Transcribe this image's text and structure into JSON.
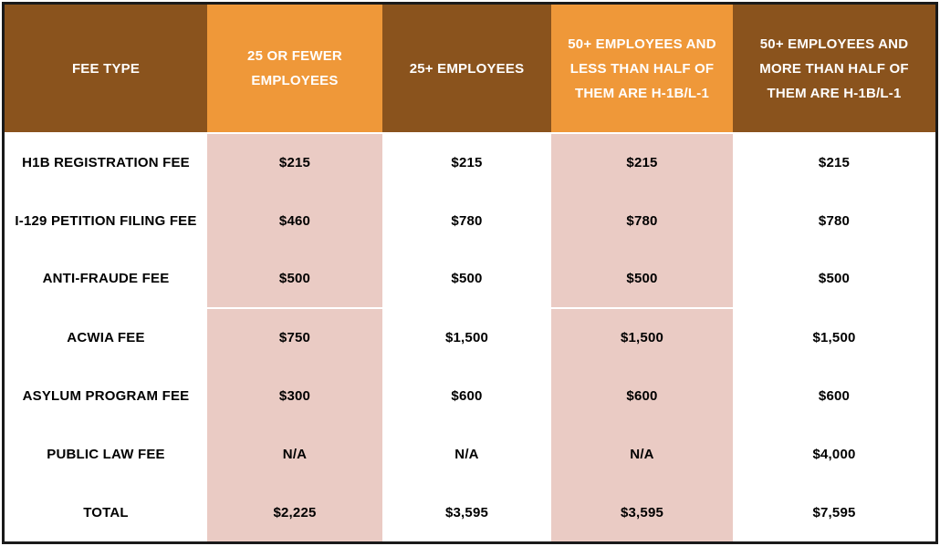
{
  "table": {
    "headers": [
      "FEE TYPE",
      "25 OR FEWER EMPLOYEES",
      "25+ EMPLOYEES",
      "50+ EMPLOYEES AND LESS THAN HALF OF THEM ARE H-1B/L-1",
      "50+ EMPLOYEES AND MORE THAN HALF OF THEM ARE H-1B/L-1"
    ],
    "rows": [
      {
        "cells": [
          "H1B REGISTRATION FEE",
          "$215",
          "$215",
          "$215",
          "$215"
        ]
      },
      {
        "cells": [
          "I-129 PETITION FILING FEE",
          "$460",
          "$780",
          "$780",
          "$780"
        ]
      },
      {
        "cells": [
          "ANTI-FRAUDE FEE",
          "$500",
          "$500",
          "$500",
          "$500"
        ]
      },
      {
        "cells": [
          "ACWIA FEE",
          "$750",
          "$1,500",
          "$1,500",
          "$1,500"
        ]
      },
      {
        "cells": [
          "ASYLUM PROGRAM FEE",
          "$300",
          "$600",
          "$600",
          "$600"
        ]
      },
      {
        "cells": [
          "PUBLIC LAW FEE",
          "N/A",
          "N/A",
          "N/A",
          "$4,000"
        ]
      },
      {
        "cells": [
          "TOTAL",
          "$2,225",
          "$3,595",
          "$3,595",
          "$7,595"
        ]
      }
    ]
  },
  "colors": {
    "header_brown": "#8a531d",
    "header_orange": "#ef9839",
    "column_pink": "#eacbc4",
    "table_border": "#1a1a1a",
    "header_text": "#ffffff",
    "body_text": "#000000"
  }
}
